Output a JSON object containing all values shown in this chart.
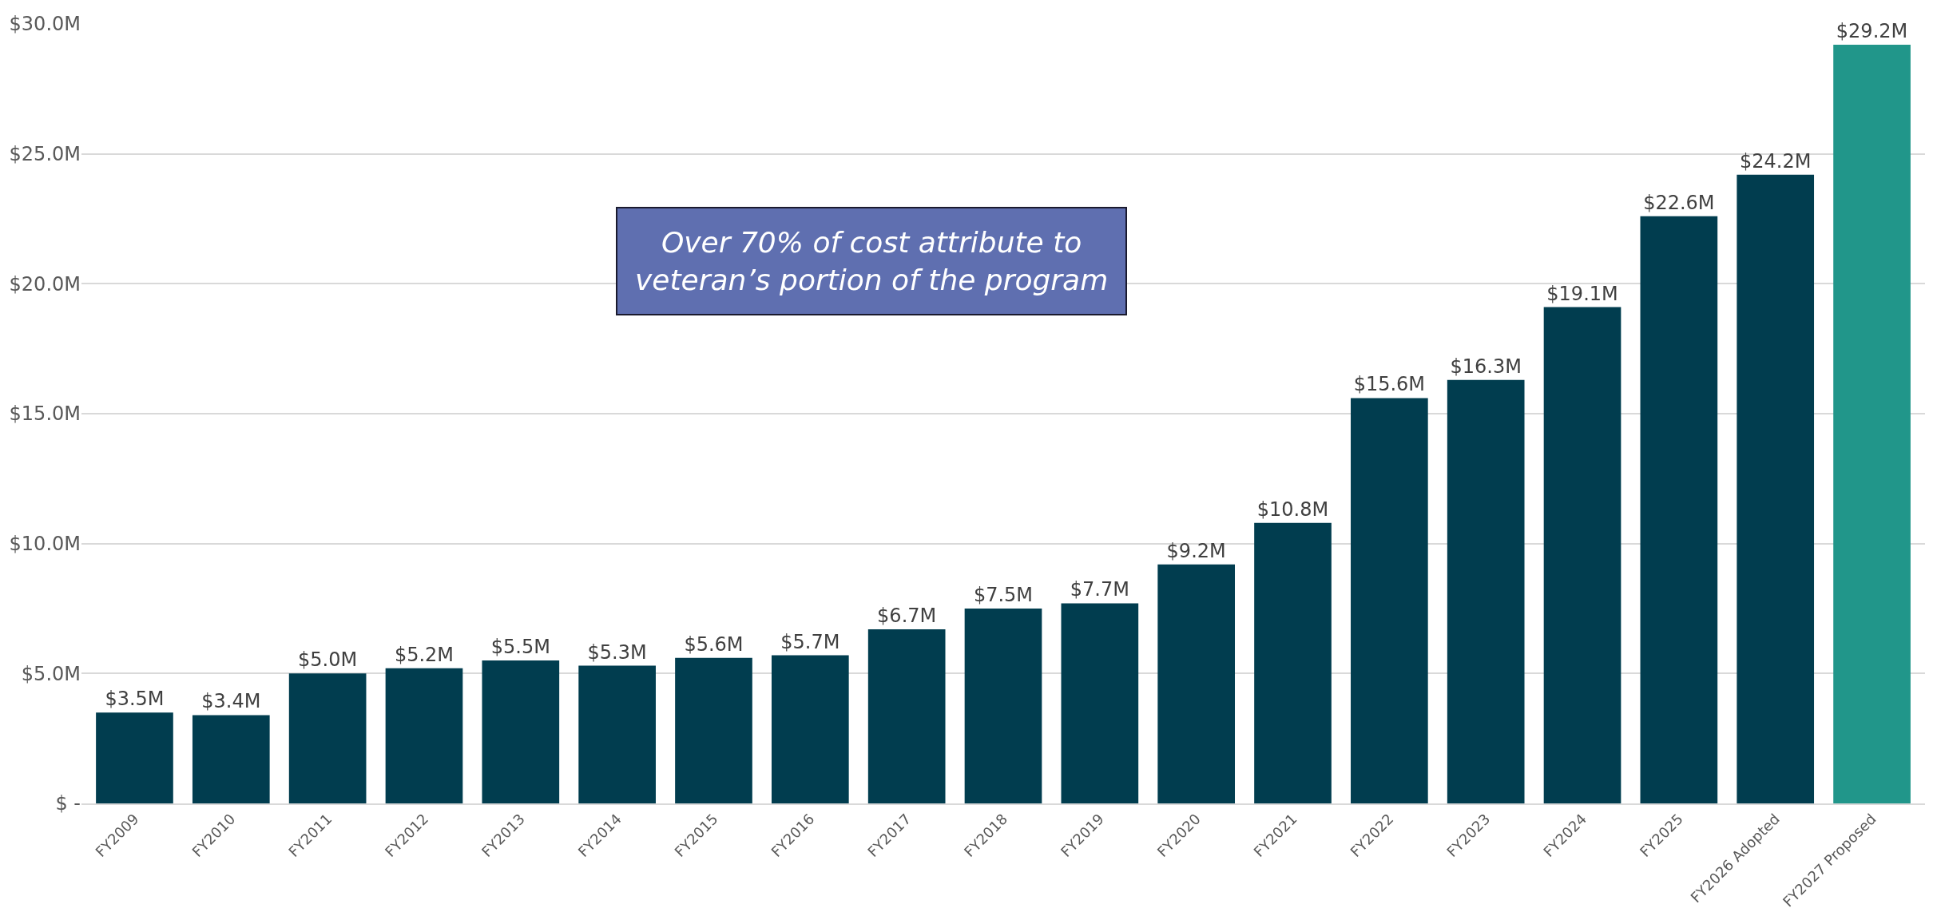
{
  "chart_data": {
    "type": "bar",
    "categories": [
      "FY2009",
      "FY2010",
      "FY2011",
      "FY2012",
      "FY2013",
      "FY2014",
      "FY2015",
      "FY2016",
      "FY2017",
      "FY2018",
      "FY2019",
      "FY2020",
      "FY2021",
      "FY2022",
      "FY2023",
      "FY2024",
      "FY2025",
      "FY2026 Adopted",
      "FY2027 Proposed"
    ],
    "values": [
      3.5,
      3.4,
      5.0,
      5.2,
      5.5,
      5.3,
      5.6,
      5.7,
      6.7,
      7.5,
      7.7,
      9.2,
      10.8,
      15.6,
      16.3,
      19.1,
      22.6,
      24.2,
      29.2
    ],
    "value_labels": [
      "$3.5M",
      "$3.4M",
      "$5.0M",
      "$5.2M",
      "$5.5M",
      "$5.3M",
      "$5.6M",
      "$5.7M",
      "$6.7M",
      "$7.5M",
      "$7.7M",
      "$9.2M",
      "$10.8M",
      "$15.6M",
      "$16.3M",
      "$19.1M",
      "$22.6M",
      "$24.2M",
      "$29.2M"
    ],
    "colors": [
      "#013d4f",
      "#013d4f",
      "#013d4f",
      "#013d4f",
      "#013d4f",
      "#013d4f",
      "#013d4f",
      "#013d4f",
      "#013d4f",
      "#013d4f",
      "#013d4f",
      "#013d4f",
      "#013d4f",
      "#013d4f",
      "#013d4f",
      "#013d4f",
      "#013d4f",
      "#013d4f",
      "#21968a"
    ],
    "ylim": [
      0,
      30
    ],
    "yticks": [
      {
        "value": 0,
        "label": "$ -"
      },
      {
        "value": 5,
        "label": "$5.0M"
      },
      {
        "value": 10,
        "label": "$10.0M"
      },
      {
        "value": 15,
        "label": "$15.0M"
      },
      {
        "value": 20,
        "label": "$20.0M"
      },
      {
        "value": 25,
        "label": "$25.0M"
      },
      {
        "value": 30,
        "label": "$30.0M"
      }
    ],
    "grid": "y",
    "annotations": [
      "Over 70% of cost attribute to\nveteran’s portion of the program"
    ]
  }
}
